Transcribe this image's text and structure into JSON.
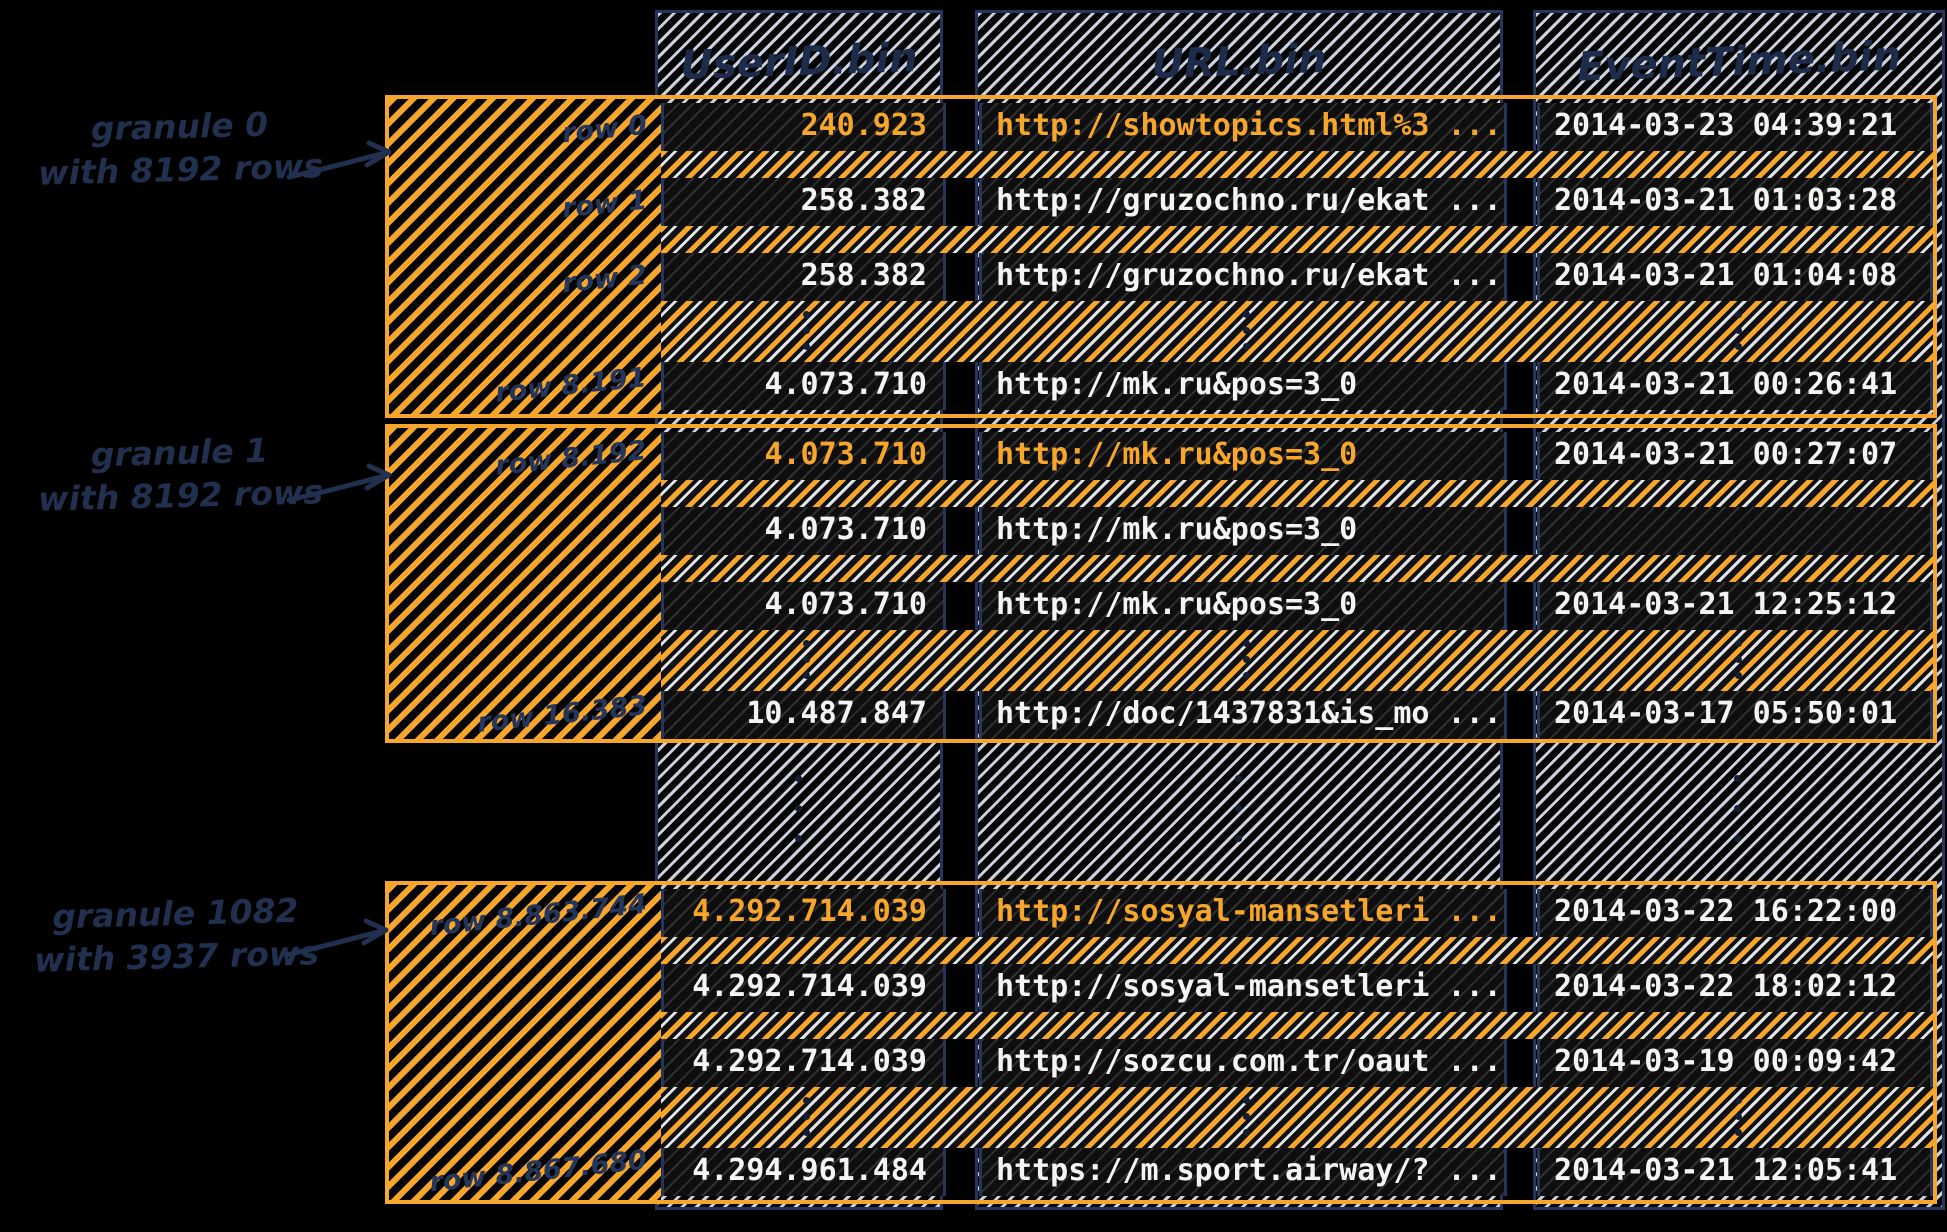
{
  "colors": {
    "accent_orange": "#F6A62B",
    "ink_navy": "#21304E",
    "column_border_navy": "#25355C",
    "hatch_light": "#D6DCE7",
    "row_text_white": "#F4F4F2",
    "background": "#000000"
  },
  "columns": [
    {
      "id": "userid",
      "header": "UserID.bin"
    },
    {
      "id": "url",
      "header": "URL.bin"
    },
    {
      "id": "eventtime",
      "header": "EventTime.bin"
    }
  ],
  "granules": [
    {
      "caption": {
        "line1": "granule 0",
        "line2": "with 8192 rows"
      },
      "rows": [
        {
          "label": "row 0",
          "highlight": true,
          "userid": "240.923",
          "url": "http://showtopics.html%3 ...",
          "eventtime": "2014-03-23 04:39:21"
        },
        {
          "label": "row 1",
          "highlight": false,
          "userid": "258.382",
          "url": "http://gruzochno.ru/ekat ...",
          "eventtime": "2014-03-21 01:03:28"
        },
        {
          "label": "row 2",
          "highlight": false,
          "userid": "258.382",
          "url": "http://gruzochno.ru/ekat ...",
          "eventtime": "2014-03-21 01:04:08"
        },
        {
          "label": "row 8.191",
          "highlight": false,
          "userid": "4.073.710",
          "url": "http://mk.ru&pos=3_0",
          "eventtime": "2014-03-21 00:26:41"
        }
      ]
    },
    {
      "caption": {
        "line1": "granule 1",
        "line2": "with 8192 rows"
      },
      "rows": [
        {
          "label": "row 8.192",
          "highlight": true,
          "userid": "4.073.710",
          "url": "http://mk.ru&pos=3_0",
          "eventtime": "2014-03-21 00:27:07"
        },
        {
          "label": null,
          "highlight": false,
          "userid": "4.073.710",
          "url": "http://mk.ru&pos=3_0",
          "eventtime": ""
        },
        {
          "label": null,
          "highlight": false,
          "userid": "4.073.710",
          "url": "http://mk.ru&pos=3_0",
          "eventtime": "2014-03-21 12:25:12"
        },
        {
          "label": "row 16.383",
          "highlight": false,
          "userid": "10.487.847",
          "url": "http://doc/1437831&is_mo ...",
          "eventtime": "2014-03-17 05:50:01"
        }
      ]
    },
    {
      "caption": {
        "line1": "granule 1082",
        "line2": "with 3937 rows"
      },
      "rows": [
        {
          "label": "row 8.863.744",
          "highlight": true,
          "userid": "4.292.714.039",
          "url": "http://sosyal-mansetleri ...",
          "eventtime": "2014-03-22 16:22:00"
        },
        {
          "label": null,
          "highlight": false,
          "userid": "4.292.714.039",
          "url": "http://sosyal-mansetleri ...",
          "eventtime": "2014-03-22 18:02:12"
        },
        {
          "label": null,
          "highlight": false,
          "userid": "4.292.714.039",
          "url": "http://sozcu.com.tr/oaut ...",
          "eventtime": "2014-03-19 00:09:42"
        },
        {
          "label": "row 8.867.680",
          "highlight": false,
          "userid": "4.294.961.484",
          "url": "https://m.sport.airway/? ...",
          "eventtime": "2014-03-21 12:05:41"
        }
      ]
    }
  ]
}
